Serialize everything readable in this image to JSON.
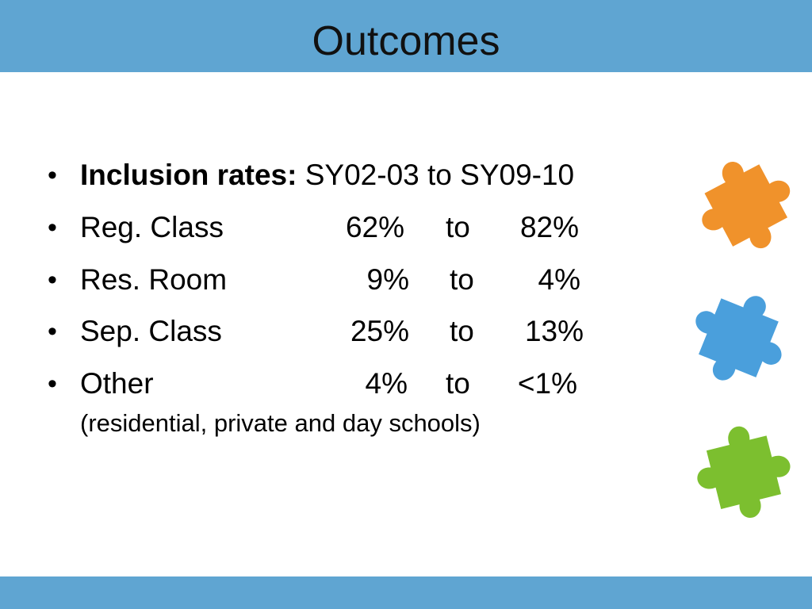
{
  "slide": {
    "title": "Outcomes",
    "heading": {
      "bold_label": "Inclusion rates:",
      "period": "SY02-03 to SY09-10"
    },
    "rows": [
      {
        "label": "Reg. Class",
        "from": "62%",
        "to_word": "to",
        "to": "82%"
      },
      {
        "label": "Res. Room",
        "from": "9%",
        "to_word": "to",
        "to": "4%"
      },
      {
        "label": "Sep. Class",
        "from": "25%",
        "to_word": "to",
        "to": "13%"
      },
      {
        "label": "Other",
        "from": "4%",
        "to_word": "to",
        "to": "<1%"
      }
    ],
    "other_note": "(residential, private and day schools)",
    "bullet_char": "•"
  },
  "colors": {
    "bar": "#5fa5d2",
    "puzzle_orange": "#f0922b",
    "puzzle_blue": "#4a9fdc",
    "puzzle_green": "#7cbf2f"
  },
  "icons": [
    "orange-puzzle-piece-icon",
    "blue-puzzle-piece-icon",
    "green-puzzle-piece-icon"
  ]
}
